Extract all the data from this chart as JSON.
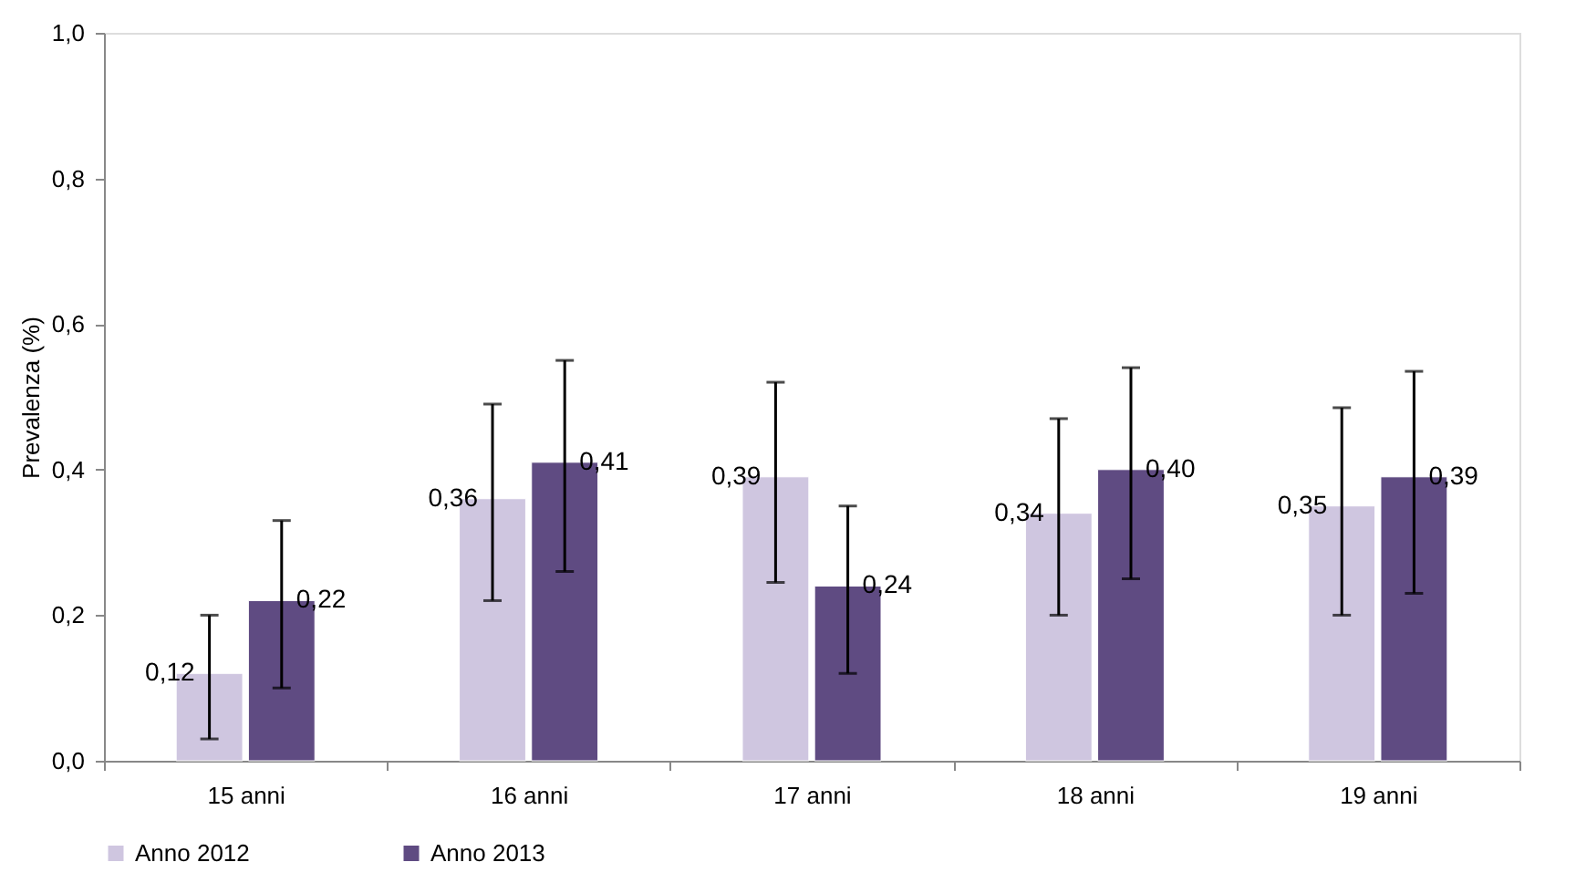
{
  "chart_data": {
    "type": "bar",
    "ylabel": "Prevalenza (%)",
    "categories": [
      "15 anni",
      "16 anni",
      "17 anni",
      "18 anni",
      "19 anni"
    ],
    "series": [
      {
        "name": "Anno 2012",
        "color": "#cfc6e0",
        "values": [
          0.12,
          0.36,
          0.39,
          0.34,
          0.35
        ],
        "value_labels": [
          "0,12",
          "0,36",
          "0,39",
          "0,34",
          "0,35"
        ],
        "errors": [
          [
            0.03,
            0.2
          ],
          [
            0.22,
            0.49
          ],
          [
            0.245,
            0.52
          ],
          [
            0.2,
            0.47
          ],
          [
            0.2,
            0.485
          ]
        ]
      },
      {
        "name": "Anno 2013",
        "color": "#5f4b82",
        "values": [
          0.22,
          0.41,
          0.24,
          0.4,
          0.39
        ],
        "value_labels": [
          "0,22",
          "0,41",
          "0,24",
          "0,40",
          "0,39"
        ],
        "errors": [
          [
            0.1,
            0.33
          ],
          [
            0.26,
            0.55
          ],
          [
            0.12,
            0.35
          ],
          [
            0.25,
            0.54
          ],
          [
            0.23,
            0.535
          ]
        ]
      }
    ],
    "ylim": [
      0,
      1.0
    ],
    "yticks": [
      {
        "value": 0,
        "label": "0,0"
      },
      {
        "value": 0.2,
        "label": "0,2"
      },
      {
        "value": 0.4,
        "label": "0,4"
      },
      {
        "value": 0.6,
        "label": "0,6"
      },
      {
        "value": 0.8,
        "label": "0,8"
      },
      {
        "value": 1.0,
        "label": "1,0"
      }
    ],
    "grid": false,
    "legend": "bottom"
  }
}
